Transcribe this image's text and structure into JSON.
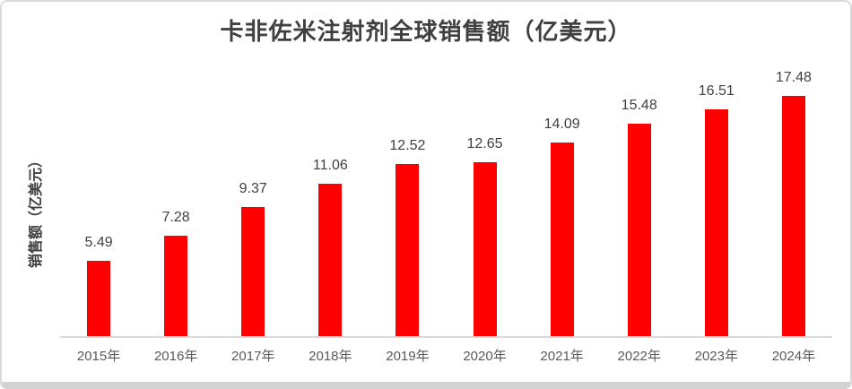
{
  "chart_data": {
    "type": "bar",
    "title": "卡非佐米注射剂全球销售额（亿美元）",
    "ylabel": "销售额（亿美元）",
    "xlabel": "",
    "categories": [
      "2015年",
      "2016年",
      "2017年",
      "2018年",
      "2019年",
      "2020年",
      "2021年",
      "2022年",
      "2023年",
      "2024年"
    ],
    "values": [
      5.49,
      7.28,
      9.37,
      11.06,
      12.52,
      12.65,
      14.09,
      15.48,
      16.51,
      17.48
    ],
    "ylim": [
      0,
      17.48
    ],
    "grid": false,
    "legend_position": "none",
    "data_labels_position": "above-bars",
    "colors": {
      "bar": "#FF0000",
      "title_text": "#404040",
      "value_label_text": "#404040",
      "tick_label_text": "#595959",
      "axis_line": "#D9D9D9",
      "card_border": "#DADADA",
      "background": "#FFFFFF"
    }
  }
}
